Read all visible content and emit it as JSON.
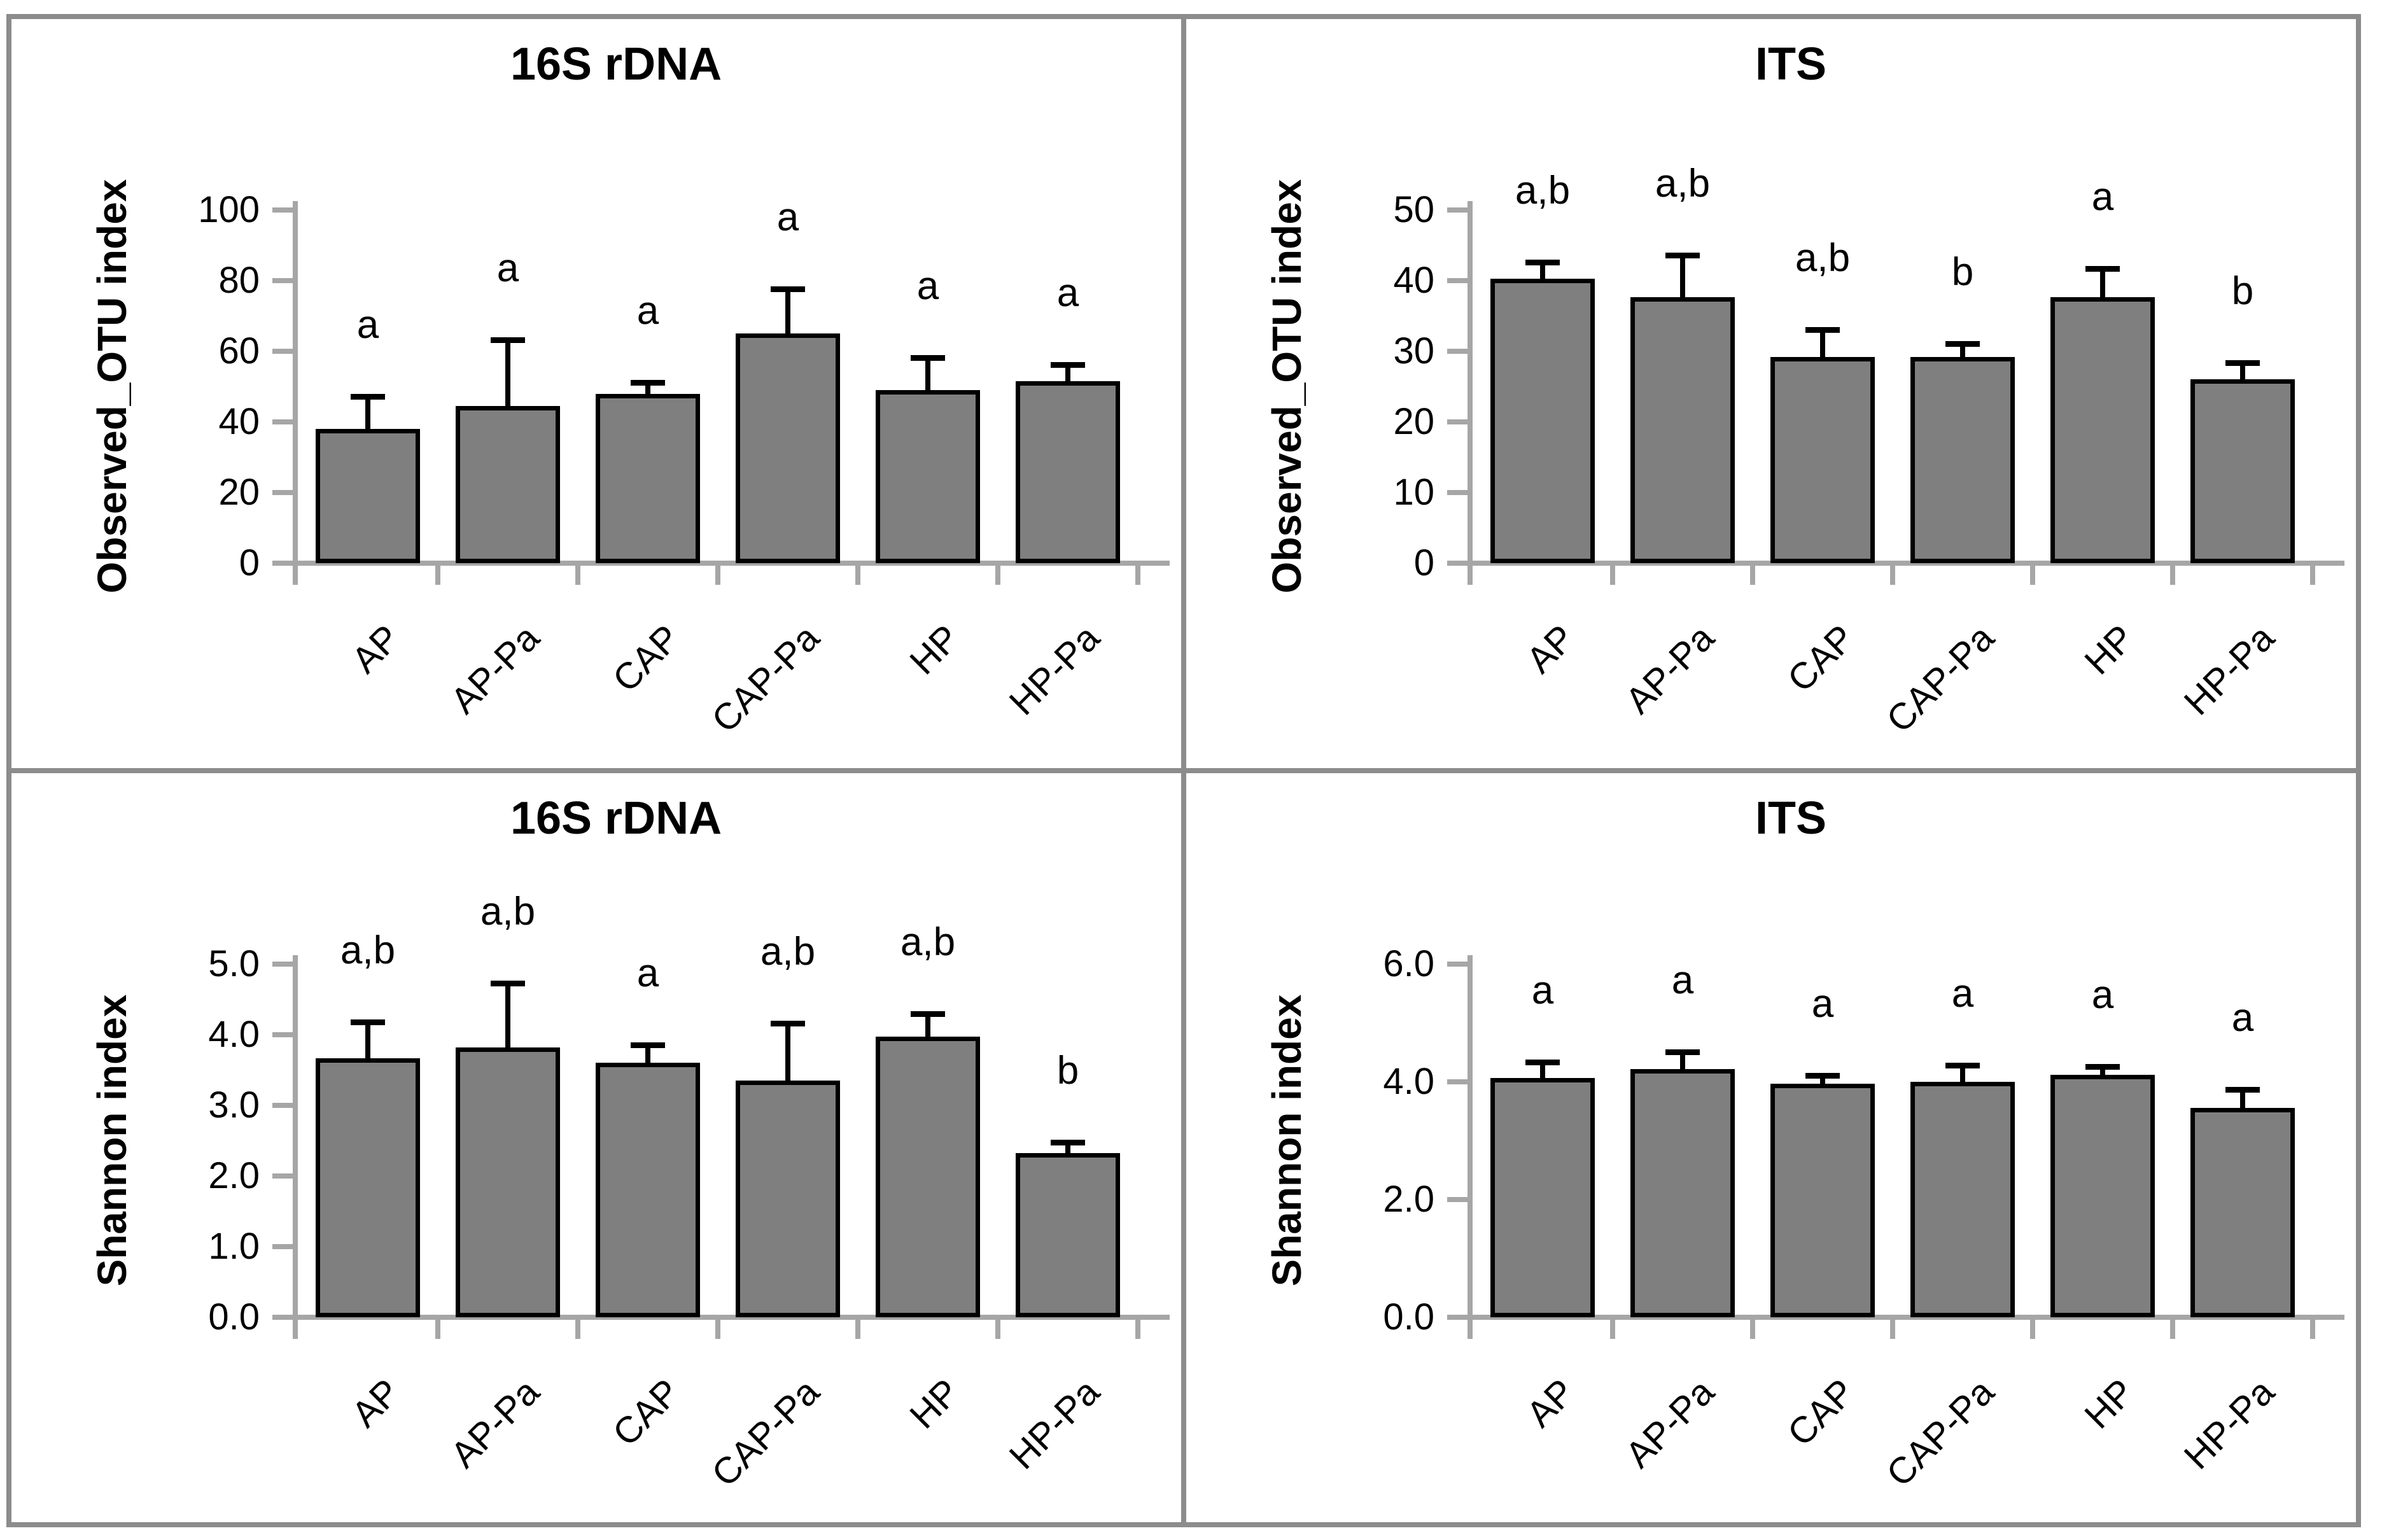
{
  "figure": {
    "background": "#FFFFFF",
    "frame_color": "#8C8C8C",
    "axis_color": "#A6A6A6",
    "bar_fill": "#7F7F7F",
    "bar_border": "#000000",
    "error_color": "#000000",
    "text_color": "#000000"
  },
  "chart_data": [
    {
      "id": "observed-otu-16s",
      "type": "bar",
      "title": "16S rDNA",
      "ylabel": "Observed_OTU index",
      "xlabel": "",
      "categories": [
        "AP",
        "AP-Pa",
        "CAP",
        "CAP-Pa",
        "HP",
        "HP-Pa"
      ],
      "values": [
        38,
        44.5,
        48,
        65,
        49,
        51.5
      ],
      "errors_up": [
        9,
        18.5,
        3,
        12.5,
        9,
        4.5
      ],
      "sig_letters": [
        "a",
        "a",
        "a",
        "a",
        "a",
        "a"
      ],
      "ylim": [
        0,
        100
      ],
      "ytick_step": 20,
      "ytick_labels": [
        "0",
        "20",
        "40",
        "60",
        "80",
        "100"
      ],
      "grid": false,
      "legend_position": "none"
    },
    {
      "id": "observed-otu-its",
      "type": "bar",
      "title": "ITS",
      "ylabel": "Observed_OTU index",
      "xlabel": "",
      "categories": [
        "AP",
        "AP-Pa",
        "CAP",
        "CAP-Pa",
        "HP",
        "HP-Pa"
      ],
      "values": [
        40.3,
        37.7,
        29.2,
        29.2,
        37.7,
        26
      ],
      "errors_up": [
        2.2,
        5.8,
        3.8,
        1.8,
        3.9,
        2.3
      ],
      "sig_letters": [
        "a,b",
        "a,b",
        "a,b",
        "b",
        "a",
        "b"
      ],
      "ylim": [
        0,
        50
      ],
      "ytick_step": 10,
      "ytick_labels": [
        "0",
        "10",
        "20",
        "30",
        "40",
        "50"
      ],
      "grid": false,
      "legend_position": "none"
    },
    {
      "id": "shannon-16s",
      "type": "bar",
      "title": "16S rDNA",
      "ylabel": "Shannon index",
      "xlabel": "",
      "categories": [
        "AP",
        "AP-Pa",
        "CAP",
        "CAP-Pa",
        "HP",
        "HP-Pa"
      ],
      "values": [
        3.67,
        3.82,
        3.6,
        3.35,
        3.97,
        2.32
      ],
      "errors_up": [
        0.5,
        0.9,
        0.25,
        0.8,
        0.32,
        0.15
      ],
      "sig_letters": [
        "a,b",
        "a,b",
        "a",
        "a,b",
        "a,b",
        "b"
      ],
      "ylim": [
        0,
        5
      ],
      "ytick_step": 1,
      "ytick_labels": [
        "0.0",
        "1.0",
        "2.0",
        "3.0",
        "4.0",
        "5.0"
      ],
      "grid": false,
      "legend_position": "none"
    },
    {
      "id": "shannon-its",
      "type": "bar",
      "title": "ITS",
      "ylabel": "Shannon index",
      "xlabel": "",
      "categories": [
        "AP",
        "AP-Pa",
        "CAP",
        "CAP-Pa",
        "HP",
        "HP-Pa"
      ],
      "values": [
        4.07,
        4.22,
        3.97,
        4.0,
        4.12,
        3.56
      ],
      "errors_up": [
        0.25,
        0.28,
        0.13,
        0.27,
        0.13,
        0.3
      ],
      "sig_letters": [
        "a",
        "a",
        "a",
        "a",
        "a",
        "a"
      ],
      "ylim": [
        0,
        6
      ],
      "ytick_step": 2,
      "ytick_labels": [
        "0.0",
        "2.0",
        "4.0",
        "6.0"
      ],
      "grid": false,
      "legend_position": "none"
    }
  ]
}
